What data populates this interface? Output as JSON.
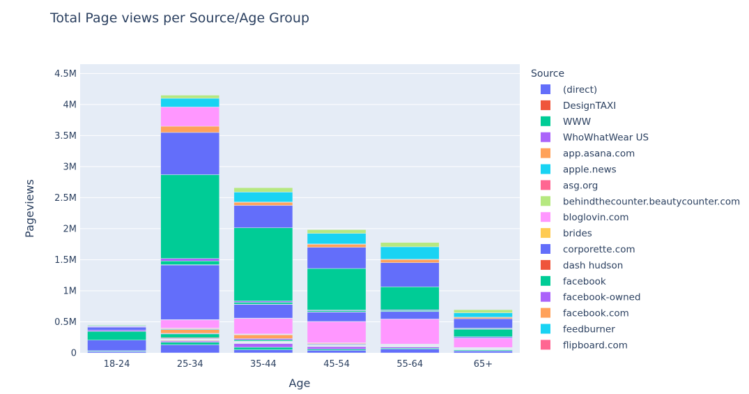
{
  "chart_data": {
    "type": "bar",
    "stacked": true,
    "title": "Total Page views per Source/Age Group",
    "xlabel": "Age",
    "ylabel": "Pageviews",
    "ylim": [
      0,
      4650000
    ],
    "yticks": [
      {
        "value": 0,
        "label": "0"
      },
      {
        "value": 500000,
        "label": "0.5M"
      },
      {
        "value": 1000000,
        "label": "1M"
      },
      {
        "value": 1500000,
        "label": "1.5M"
      },
      {
        "value": 2000000,
        "label": "2M"
      },
      {
        "value": 2500000,
        "label": "2.5M"
      },
      {
        "value": 3000000,
        "label": "3M"
      },
      {
        "value": 3500000,
        "label": "3.5M"
      },
      {
        "value": 4000000,
        "label": "4M"
      },
      {
        "value": 4500000,
        "label": "4.5M"
      }
    ],
    "grid": true,
    "legend_position": "right",
    "legend_title": "Source",
    "categories": [
      "18-24",
      "25-34",
      "35-44",
      "45-54",
      "55-64",
      "65+"
    ],
    "series": [
      {
        "name": "(direct)",
        "color": "#636efa",
        "values": [
          20000,
          130000,
          50000,
          40000,
          60000,
          30000
        ]
      },
      {
        "name": "DesignTAXI",
        "color": "#EF553B",
        "values": [
          0,
          0,
          0,
          0,
          0,
          0
        ]
      },
      {
        "name": "WWW",
        "color": "#00cc96",
        "values": [
          10000,
          40000,
          40000,
          20000,
          15000,
          15000
        ]
      },
      {
        "name": "WhoWhatWear US",
        "color": "#ab63fa",
        "values": [
          5000,
          20000,
          60000,
          40000,
          20000,
          5000
        ]
      },
      {
        "name": "app.asana.com",
        "color": "#FFA15A",
        "values": [
          0,
          10000,
          5000,
          3000,
          2000,
          1000
        ]
      },
      {
        "name": "apple.news",
        "color": "#19d3f3",
        "values": [
          0,
          5000,
          5000,
          3000,
          3000,
          2000
        ]
      },
      {
        "name": "asg.org",
        "color": "#FF6692",
        "values": [
          0,
          5000,
          5000,
          3000,
          3000,
          2000
        ]
      },
      {
        "name": "behindthecounter.beautycounter.com",
        "color": "#B6E880",
        "values": [
          0,
          5000,
          5000,
          3000,
          3000,
          2000
        ]
      },
      {
        "name": "bloglovin.com",
        "color": "#FF97FF",
        "values": [
          0,
          5000,
          5000,
          3000,
          3000,
          2000
        ]
      },
      {
        "name": "brides",
        "color": "#FECB52",
        "values": [
          0,
          5000,
          5000,
          3000,
          3000,
          2000
        ]
      },
      {
        "name": "corporette.com",
        "color": "#636efa",
        "values": [
          0,
          10000,
          5000,
          3000,
          3000,
          2000
        ]
      },
      {
        "name": "dash hudson",
        "color": "#EF553B",
        "values": [
          0,
          10000,
          5000,
          3000,
          3000,
          2000
        ]
      },
      {
        "name": "facebook",
        "color": "#00cc96",
        "values": [
          0,
          60000,
          20000,
          10000,
          5000,
          5000
        ]
      },
      {
        "name": "facebook-owned",
        "color": "#ab63fa",
        "values": [
          0,
          10000,
          20000,
          10000,
          5000,
          5000
        ]
      },
      {
        "name": "facebook.com",
        "color": "#FFA15A",
        "values": [
          0,
          60000,
          60000,
          10000,
          5000,
          5000
        ]
      },
      {
        "name": "feedburner",
        "color": "#19d3f3",
        "values": [
          0,
          10000,
          5000,
          3000,
          3000,
          2000
        ]
      },
      {
        "name": "flipboard.com",
        "color": "#FF6692",
        "values": [
          0,
          10000,
          5000,
          3000,
          3000,
          2000
        ]
      },
      {
        "name": "behindthecounter.beautycounter.com",
        "color": "#B6E880",
        "values": [
          0,
          5000,
          5000,
          3000,
          3000,
          2000
        ]
      },
      {
        "name": "bloglovin.com",
        "color": "#FF97FF",
        "values": [
          0,
          130000,
          250000,
          340000,
          400000,
          150000
        ]
      },
      {
        "name": "brides",
        "color": "#FECB52",
        "values": [
          0,
          5000,
          5000,
          3000,
          3000,
          2000
        ]
      },
      {
        "name": "corporette.com",
        "color": "#636efa",
        "values": [
          170000,
          880000,
          220000,
          150000,
          120000,
          20000
        ]
      },
      {
        "name": "dash hudson",
        "color": "#EF553B",
        "values": [
          0,
          5000,
          5000,
          3000,
          3000,
          2000
        ]
      },
      {
        "name": "facebook",
        "color": "#00cc96",
        "values": [
          140000,
          60000,
          30000,
          20000,
          15000,
          120000
        ]
      },
      {
        "name": "facebook-owned",
        "color": "#ab63fa",
        "values": [
          20000,
          40000,
          20000,
          10000,
          10000,
          10000
        ]
      },
      {
        "name": "facebook",
        "color": "#00cc96",
        "values": [
          0,
          1350000,
          1180000,
          670000,
          370000,
          10000
        ]
      },
      {
        "name": "corporette.com",
        "color": "#636efa",
        "values": [
          50000,
          680000,
          360000,
          340000,
          390000,
          150000
        ]
      },
      {
        "name": "facebook.com",
        "color": "#FFA15A",
        "values": [
          5000,
          100000,
          50000,
          50000,
          50000,
          20000
        ]
      },
      {
        "name": "bloglovin.com",
        "color": "#FF97FF",
        "values": [
          10000,
          310000,
          5000,
          5000,
          5000,
          5000
        ]
      },
      {
        "name": "apple.news",
        "color": "#19d3f3",
        "values": [
          10000,
          140000,
          160000,
          170000,
          200000,
          70000
        ]
      },
      {
        "name": "behindthecounter.beautycounter.com",
        "color": "#B6E880",
        "values": [
          10000,
          50000,
          70000,
          60000,
          70000,
          50000
        ]
      }
    ]
  }
}
